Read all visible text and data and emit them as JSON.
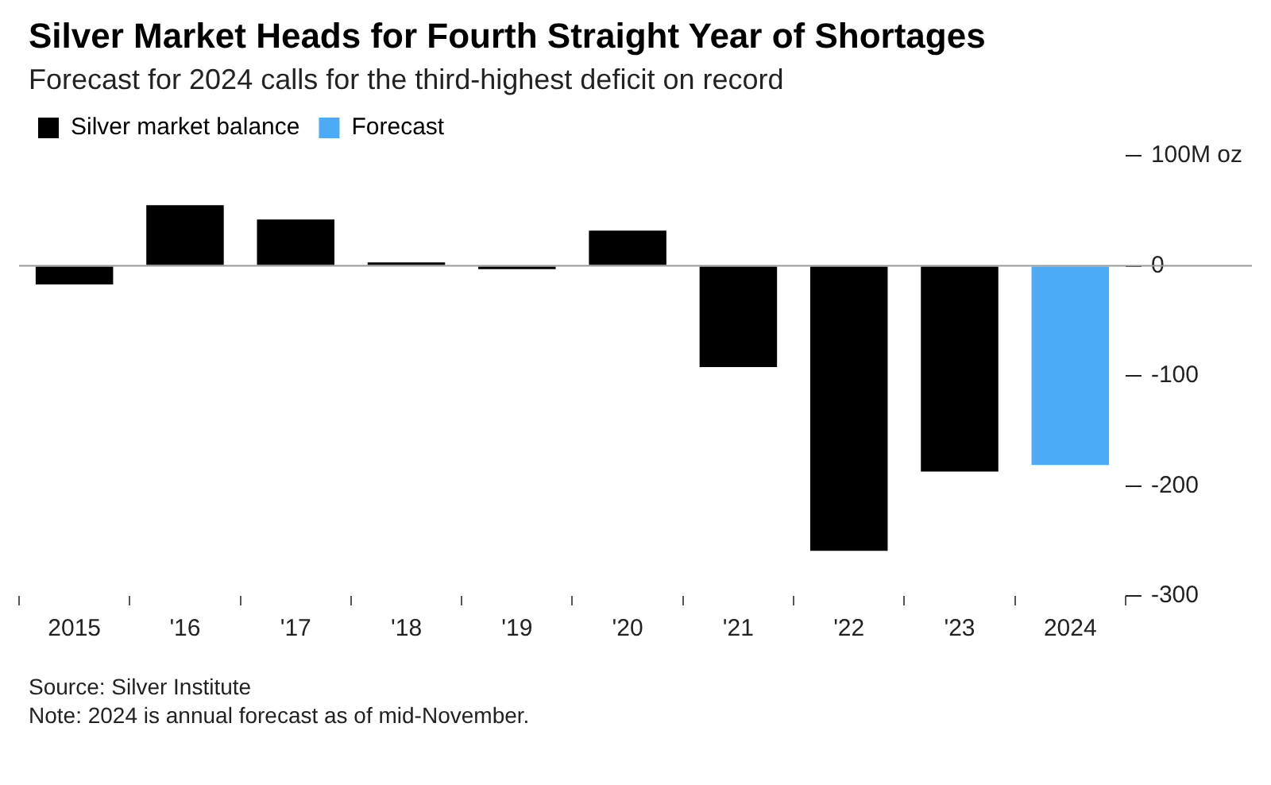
{
  "chart_data": {
    "type": "bar",
    "title": "Silver Market Heads for Fourth Straight Year of Shortages",
    "subtitle": "Forecast for 2024 calls for the third-highest deficit on record",
    "categories": [
      "2015",
      "'16",
      "'17",
      "'18",
      "'19",
      "'20",
      "'21",
      "'22",
      "'23",
      "2024"
    ],
    "series": [
      {
        "name": "Silver market balance",
        "color": "#000000",
        "values": [
          -17,
          55,
          42,
          3,
          -3,
          32,
          -92,
          -259,
          -187,
          null
        ]
      },
      {
        "name": "Forecast",
        "color": "#4daaf5",
        "values": [
          null,
          null,
          null,
          null,
          null,
          null,
          null,
          null,
          null,
          -181
        ]
      }
    ],
    "ylim": [
      -300,
      100
    ],
    "yticks": [
      {
        "value": 100,
        "label": "100M oz"
      },
      0,
      -100,
      -200,
      -300
    ],
    "ref_lines": [
      {
        "axis": "y",
        "value": 0,
        "color": "#999999"
      }
    ],
    "legend": "top left",
    "grid": false,
    "annotations": [
      "Source: Silver Institute",
      "Note: 2024 is annual forecast as of mid-November."
    ]
  }
}
